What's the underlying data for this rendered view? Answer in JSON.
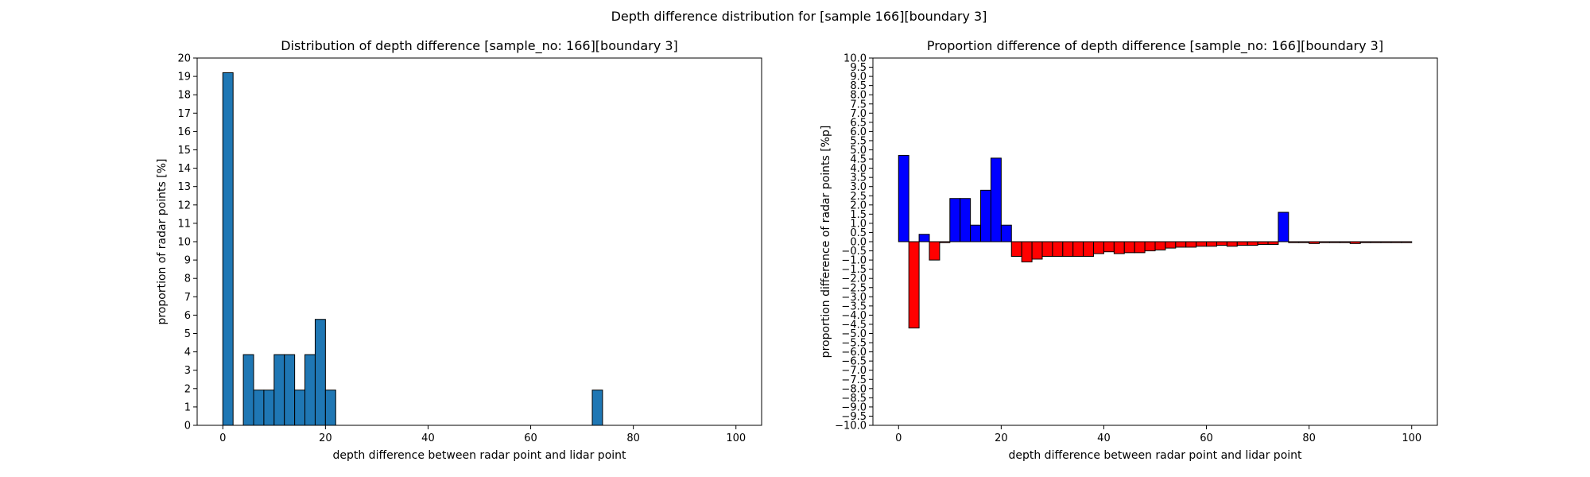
{
  "figure": {
    "suptitle": "Depth difference distribution for [sample 166][boundary 3]"
  },
  "chart_data": [
    {
      "type": "bar",
      "title": "Distribution of depth difference [sample_no: 166][boundary 3]",
      "xlabel": "depth difference between radar point and lidar point",
      "ylabel": "proportion of radar points [%]",
      "xlim": [
        -5,
        105
      ],
      "ylim": [
        0,
        20
      ],
      "x_ticks": [
        0,
        20,
        40,
        60,
        80,
        100
      ],
      "y_ticks": [
        0,
        1,
        2,
        3,
        4,
        5,
        6,
        7,
        8,
        9,
        10,
        11,
        12,
        13,
        14,
        15,
        16,
        17,
        18,
        19,
        20
      ],
      "bar_width": 2,
      "bar_color": "#1f77b4",
      "edge_color": "#000000",
      "grid": false,
      "x": [
        1,
        5,
        7,
        9,
        11,
        13,
        15,
        17,
        19,
        21,
        73
      ],
      "values": [
        19.2,
        3.85,
        1.92,
        1.92,
        3.85,
        3.85,
        1.92,
        3.85,
        5.77,
        1.92,
        1.92
      ]
    },
    {
      "type": "bar",
      "title": "Proportion difference of depth difference [sample_no: 166][boundary 3]",
      "xlabel": "depth difference between radar point and lidar point",
      "ylabel": "proportion difference of radar points [%p]",
      "xlim": [
        -5,
        105
      ],
      "ylim": [
        -10,
        10
      ],
      "x_ticks": [
        0,
        20,
        40,
        60,
        80,
        100
      ],
      "y_ticks": [
        -10.0,
        -9.5,
        -9.0,
        -8.5,
        -8.0,
        -7.5,
        -7.0,
        -6.5,
        -6.0,
        -5.5,
        -5.0,
        -4.5,
        -4.0,
        -3.5,
        -3.0,
        -2.5,
        -2.0,
        -1.5,
        -1.0,
        -0.5,
        0.0,
        0.5,
        1.0,
        1.5,
        2.0,
        2.5,
        3.0,
        3.5,
        4.0,
        4.5,
        5.0,
        5.5,
        6.0,
        6.5,
        7.0,
        7.5,
        8.0,
        8.5,
        9.0,
        9.5,
        10.0
      ],
      "bar_width": 2,
      "positive_color": "#0000ff",
      "negative_color": "#ff0000",
      "edge_color": "#000000",
      "grid": false,
      "x": [
        1,
        3,
        5,
        7,
        9,
        11,
        13,
        15,
        17,
        19,
        21,
        23,
        25,
        27,
        29,
        31,
        33,
        35,
        37,
        39,
        41,
        43,
        45,
        47,
        49,
        51,
        53,
        55,
        57,
        59,
        61,
        63,
        65,
        67,
        69,
        71,
        73,
        75,
        77,
        79,
        81,
        83,
        85,
        87,
        89,
        91,
        93,
        95,
        97,
        99
      ],
      "values": [
        4.7,
        -4.7,
        0.4,
        -1.0,
        -0.05,
        2.35,
        2.35,
        0.9,
        2.8,
        4.55,
        0.9,
        -0.8,
        -1.1,
        -0.95,
        -0.8,
        -0.8,
        -0.8,
        -0.8,
        -0.8,
        -0.65,
        -0.55,
        -0.65,
        -0.6,
        -0.6,
        -0.5,
        -0.45,
        -0.35,
        -0.3,
        -0.3,
        -0.25,
        -0.25,
        -0.2,
        -0.25,
        -0.2,
        -0.2,
        -0.15,
        -0.15,
        1.6,
        -0.05,
        -0.05,
        -0.1,
        -0.05,
        -0.05,
        -0.05,
        -0.1,
        -0.05,
        -0.05,
        -0.05,
        -0.05,
        -0.05
      ]
    }
  ]
}
